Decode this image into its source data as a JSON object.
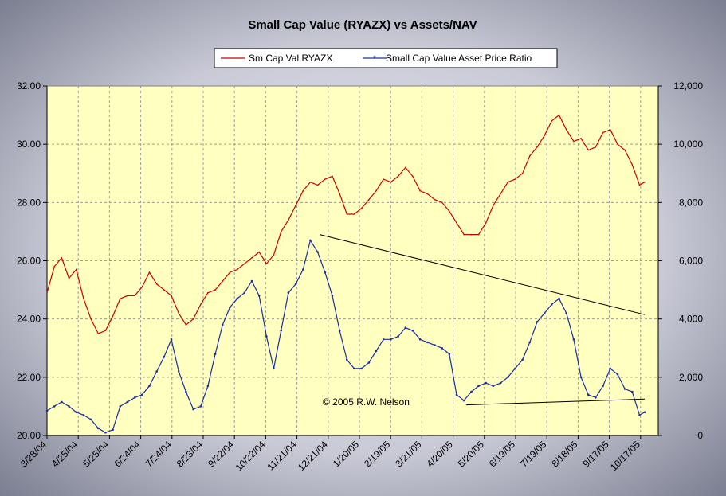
{
  "chart_data": {
    "type": "line",
    "title": "Small Cap Value (RYAZX) vs Assets/NAV",
    "annotation": "© 2005 R.W. Nelson",
    "legend_position": "top",
    "grid": true,
    "colors": {
      "plot_background": "#FFFFC0",
      "grid": "#9a9a9a",
      "series_price": "#CC0000",
      "series_ratio": "#1A2FA0",
      "trendline": "#000000"
    },
    "x_tick_labels": [
      "3/28/04",
      "4/25/04",
      "5/25/04",
      "6/24/04",
      "7/24/04",
      "8/23/04",
      "9/22/04",
      "10/22/04",
      "11/21/04",
      "12/21/04",
      "1/20/05",
      "2/19/05",
      "3/21/05",
      "4/20/05",
      "5/20/05",
      "6/19/05",
      "7/19/05",
      "8/18/05",
      "9/17/05",
      "10/17/05"
    ],
    "y_left": {
      "min": 20,
      "max": 32,
      "ticks": [
        "20.00",
        "22.00",
        "24.00",
        "26.00",
        "28.00",
        "30.00",
        "32.00"
      ]
    },
    "y_right": {
      "min": 0,
      "max": 12000,
      "ticks": [
        "0",
        "2,000",
        "4,000",
        "6,000",
        "8,000",
        "10,000",
        "12,000"
      ]
    },
    "series": [
      {
        "name": "Sm Cap Val RYAZX",
        "axis": "left",
        "points": [
          [
            "3/28/04",
            24.9
          ],
          [
            "4/4/04",
            25.8
          ],
          [
            "4/11/04",
            26.1
          ],
          [
            "4/18/04",
            25.4
          ],
          [
            "4/25/04",
            25.7
          ],
          [
            "5/2/04",
            24.7
          ],
          [
            "5/9/04",
            24.0
          ],
          [
            "5/16/04",
            23.5
          ],
          [
            "5/23/04",
            23.6
          ],
          [
            "5/30/04",
            24.1
          ],
          [
            "6/6/04",
            24.7
          ],
          [
            "6/13/04",
            24.8
          ],
          [
            "6/20/04",
            24.8
          ],
          [
            "6/27/04",
            25.1
          ],
          [
            "7/4/04",
            25.6
          ],
          [
            "7/11/04",
            25.2
          ],
          [
            "7/18/04",
            25.0
          ],
          [
            "7/25/04",
            24.8
          ],
          [
            "8/1/04",
            24.2
          ],
          [
            "8/8/04",
            23.8
          ],
          [
            "8/15/04",
            24.0
          ],
          [
            "8/22/04",
            24.5
          ],
          [
            "8/29/04",
            24.9
          ],
          [
            "9/5/04",
            25.0
          ],
          [
            "9/12/04",
            25.3
          ],
          [
            "9/19/04",
            25.6
          ],
          [
            "9/26/04",
            25.7
          ],
          [
            "10/3/04",
            25.9
          ],
          [
            "10/10/04",
            26.1
          ],
          [
            "10/17/04",
            26.3
          ],
          [
            "10/24/04",
            25.9
          ],
          [
            "10/31/04",
            26.2
          ],
          [
            "11/7/04",
            27.0
          ],
          [
            "11/14/04",
            27.4
          ],
          [
            "11/21/04",
            27.9
          ],
          [
            "11/28/04",
            28.4
          ],
          [
            "12/5/04",
            28.7
          ],
          [
            "12/12/04",
            28.6
          ],
          [
            "12/19/04",
            28.8
          ],
          [
            "12/26/04",
            28.9
          ],
          [
            "1/2/05",
            28.3
          ],
          [
            "1/9/05",
            27.6
          ],
          [
            "1/16/05",
            27.6
          ],
          [
            "1/23/05",
            27.8
          ],
          [
            "1/30/05",
            28.1
          ],
          [
            "2/6/05",
            28.4
          ],
          [
            "2/13/05",
            28.8
          ],
          [
            "2/20/05",
            28.7
          ],
          [
            "2/27/05",
            28.9
          ],
          [
            "3/6/05",
            29.2
          ],
          [
            "3/13/05",
            28.9
          ],
          [
            "3/20/05",
            28.4
          ],
          [
            "3/27/05",
            28.3
          ],
          [
            "4/3/05",
            28.1
          ],
          [
            "4/10/05",
            28.0
          ],
          [
            "4/17/05",
            27.7
          ],
          [
            "4/24/05",
            27.3
          ],
          [
            "5/1/05",
            26.9
          ],
          [
            "5/8/05",
            26.9
          ],
          [
            "5/15/05",
            26.9
          ],
          [
            "5/22/05",
            27.3
          ],
          [
            "5/29/05",
            27.9
          ],
          [
            "6/5/05",
            28.3
          ],
          [
            "6/12/05",
            28.7
          ],
          [
            "6/19/05",
            28.8
          ],
          [
            "6/26/05",
            29.0
          ],
          [
            "7/3/05",
            29.6
          ],
          [
            "7/10/05",
            29.9
          ],
          [
            "7/17/05",
            30.3
          ],
          [
            "7/24/05",
            30.8
          ],
          [
            "7/31/05",
            31.0
          ],
          [
            "8/7/05",
            30.5
          ],
          [
            "8/14/05",
            30.1
          ],
          [
            "8/21/05",
            30.2
          ],
          [
            "8/28/05",
            29.8
          ],
          [
            "9/4/05",
            29.9
          ],
          [
            "9/11/05",
            30.4
          ],
          [
            "9/18/05",
            30.5
          ],
          [
            "9/25/05",
            30.0
          ],
          [
            "10/2/05",
            29.8
          ],
          [
            "10/9/05",
            29.3
          ],
          [
            "10/16/05",
            28.6
          ],
          [
            "10/21/05",
            28.7
          ]
        ]
      },
      {
        "name": "Small Cap Value Asset Price Ratio",
        "axis": "right",
        "points": [
          [
            "3/28/04",
            850
          ],
          [
            "4/4/04",
            1000
          ],
          [
            "4/11/04",
            1150
          ],
          [
            "4/18/04",
            1000
          ],
          [
            "4/25/04",
            800
          ],
          [
            "5/2/04",
            700
          ],
          [
            "5/9/04",
            550
          ],
          [
            "5/16/04",
            250
          ],
          [
            "5/23/04",
            100
          ],
          [
            "5/30/04",
            200
          ],
          [
            "6/6/04",
            1000
          ],
          [
            "6/13/04",
            1150
          ],
          [
            "6/20/04",
            1300
          ],
          [
            "6/27/04",
            1400
          ],
          [
            "7/4/04",
            1700
          ],
          [
            "7/11/04",
            2200
          ],
          [
            "7/18/04",
            2700
          ],
          [
            "7/25/04",
            3300
          ],
          [
            "8/1/04",
            2200
          ],
          [
            "8/8/04",
            1500
          ],
          [
            "8/15/04",
            900
          ],
          [
            "8/22/04",
            1000
          ],
          [
            "8/29/04",
            1700
          ],
          [
            "9/5/04",
            2800
          ],
          [
            "9/12/04",
            3800
          ],
          [
            "9/19/04",
            4400
          ],
          [
            "9/26/04",
            4700
          ],
          [
            "10/3/04",
            4900
          ],
          [
            "10/10/04",
            5300
          ],
          [
            "10/17/04",
            4800
          ],
          [
            "10/24/04",
            3400
          ],
          [
            "10/31/04",
            2300
          ],
          [
            "11/7/04",
            3600
          ],
          [
            "11/14/04",
            4900
          ],
          [
            "11/21/04",
            5200
          ],
          [
            "11/28/04",
            5700
          ],
          [
            "12/5/04",
            6700
          ],
          [
            "12/12/04",
            6300
          ],
          [
            "12/19/04",
            5600
          ],
          [
            "12/26/04",
            4800
          ],
          [
            "1/2/05",
            3600
          ],
          [
            "1/9/05",
            2600
          ],
          [
            "1/16/05",
            2300
          ],
          [
            "1/23/05",
            2300
          ],
          [
            "1/30/05",
            2500
          ],
          [
            "2/6/05",
            2900
          ],
          [
            "2/13/05",
            3300
          ],
          [
            "2/20/05",
            3300
          ],
          [
            "2/27/05",
            3400
          ],
          [
            "3/6/05",
            3700
          ],
          [
            "3/13/05",
            3600
          ],
          [
            "3/20/05",
            3300
          ],
          [
            "3/27/05",
            3200
          ],
          [
            "4/3/05",
            3100
          ],
          [
            "4/10/05",
            3000
          ],
          [
            "4/17/05",
            2800
          ],
          [
            "4/24/05",
            1400
          ],
          [
            "5/1/05",
            1200
          ],
          [
            "5/8/05",
            1500
          ],
          [
            "5/15/05",
            1700
          ],
          [
            "5/22/05",
            1800
          ],
          [
            "5/29/05",
            1700
          ],
          [
            "6/5/05",
            1800
          ],
          [
            "6/12/05",
            2000
          ],
          [
            "6/19/05",
            2300
          ],
          [
            "6/26/05",
            2600
          ],
          [
            "7/3/05",
            3200
          ],
          [
            "7/10/05",
            3900
          ],
          [
            "7/17/05",
            4200
          ],
          [
            "7/24/05",
            4500
          ],
          [
            "7/31/05",
            4700
          ],
          [
            "8/7/05",
            4200
          ],
          [
            "8/14/05",
            3300
          ],
          [
            "8/21/05",
            2000
          ],
          [
            "8/28/05",
            1400
          ],
          [
            "9/4/05",
            1300
          ],
          [
            "9/11/05",
            1700
          ],
          [
            "9/18/05",
            2300
          ],
          [
            "9/25/05",
            2100
          ],
          [
            "10/2/05",
            1600
          ],
          [
            "10/9/05",
            1500
          ],
          [
            "10/16/05",
            700
          ],
          [
            "10/21/05",
            800
          ]
        ]
      }
    ],
    "trendlines": [
      {
        "axis": "right",
        "from": [
          "12/14/04",
          6900
        ],
        "to": [
          "10/21/05",
          4150
        ]
      },
      {
        "axis": "right",
        "from": [
          "5/3/05",
          1050
        ],
        "to": [
          "10/21/05",
          1250
        ]
      }
    ]
  }
}
